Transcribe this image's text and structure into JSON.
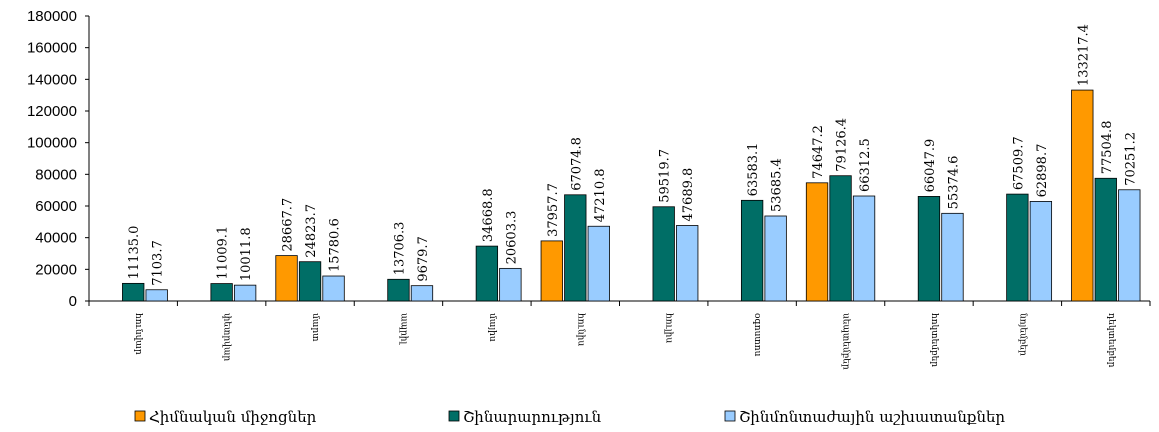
{
  "chart_data": {
    "type": "bar",
    "categories": [
      "հունվար",
      "փետրվար",
      "մարտ",
      "ապրիլ",
      "մայիս",
      "հունիս",
      "հուլիս",
      "օգոստոս",
      "սեպտեմբեր",
      "հոկտեմբեր",
      "նոյեմբեր",
      "դեկտեմբեր"
    ],
    "series": [
      {
        "name": "Հիմնական միջոցներ",
        "color": "#FF9900",
        "values": [
          null,
          null,
          28667.7,
          null,
          null,
          37957.7,
          null,
          null,
          74647.2,
          null,
          null,
          133217.4
        ],
        "labels": [
          "",
          "",
          "28667.7",
          "",
          "",
          "37957.7",
          "",
          "",
          "74647.2",
          "",
          "",
          "133217.4"
        ]
      },
      {
        "name": "Շինարարություն",
        "color": "#006E66",
        "values": [
          11135.0,
          11009.1,
          24823.7,
          13706.3,
          34668.8,
          67074.8,
          59519.7,
          63583.1,
          79126.4,
          66047.9,
          67509.7,
          77504.8
        ],
        "labels": [
          "11135.0",
          "11009.1",
          "24823.7",
          "13706.3",
          "34668.8",
          "67074.8",
          "59519.7",
          "63583.1",
          "79126.4",
          "66047.9",
          "67509.7",
          "77504.8"
        ]
      },
      {
        "name": "Շինմոնտաժային աշխատանքներ",
        "color": "#99CCFF",
        "values": [
          7103.7,
          10011.8,
          15780.6,
          9679.7,
          20603.3,
          47210.8,
          47689.8,
          53685.4,
          66312.5,
          55374.6,
          62898.7,
          70251.2
        ],
        "labels": [
          "7103.7",
          "10011.8",
          "15780.6",
          "9679.7",
          "20603.3",
          "47210.8",
          "47689.8",
          "53685.4",
          "66312.5",
          "55374.6",
          "62898.7",
          "70251.2"
        ]
      }
    ],
    "ylim": [
      0,
      180000
    ],
    "yticks": [
      "0",
      "20000",
      "40000",
      "60000",
      "80000",
      "100000",
      "120000",
      "140000",
      "160000",
      "180000"
    ],
    "grid": false,
    "legend": "bottom"
  }
}
